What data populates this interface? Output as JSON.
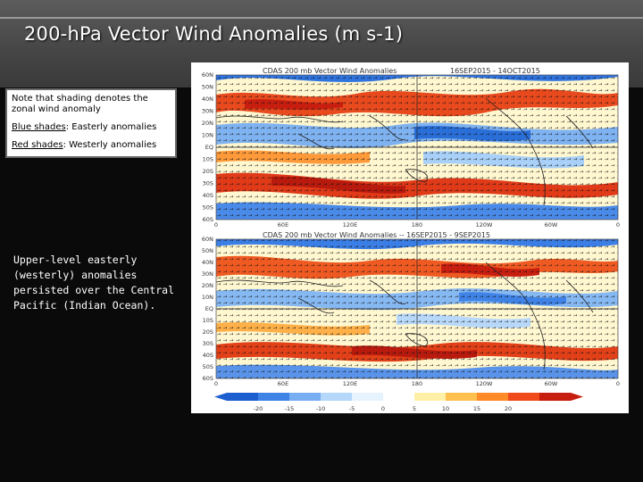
{
  "slide": {
    "title": "200-hPa Vector Wind Anomalies (m s-1)",
    "note": {
      "intro": "Note that shading denotes the zonal wind anomaly",
      "blue_label": "Blue shades",
      "blue_desc": ": Easterly anomalies",
      "red_label": "Red shades",
      "red_desc": ": Westerly anomalies"
    },
    "summary": "Upper-level easterly (westerly) anomalies persisted over the Central Pacific (Indian Ocean)."
  },
  "figure": {
    "panel1_title": "CDAS 200 mb Vector Wind Anomalies",
    "panel1_dates": "16SEP2015 - 14OCT2015",
    "panel2_title": "CDAS 200 mb Vector Wind Anomalies -- 16SEP2015 - 9SEP2015",
    "panel2_dates": "",
    "lat_labels": [
      "60N",
      "50N",
      "40N",
      "30N",
      "20N",
      "10N",
      "EQ",
      "10S",
      "20S",
      "30S",
      "40S",
      "50S",
      "60S"
    ],
    "lon_labels": [
      "0",
      "60E",
      "120E",
      "180",
      "120W",
      "60W",
      "0"
    ],
    "colorbar_labels": [
      "-20",
      "-15",
      "-10",
      "-5",
      "0",
      "5",
      "10",
      "15",
      "20"
    ],
    "colorbar_colors": [
      "#1e5fd0",
      "#3f83e6",
      "#77aef2",
      "#b4d7fa",
      "#e6f3ff",
      "#ffffff",
      "#fff0a8",
      "#ffc050",
      "#ff8a28",
      "#f04a1a",
      "#c81e10"
    ]
  }
}
